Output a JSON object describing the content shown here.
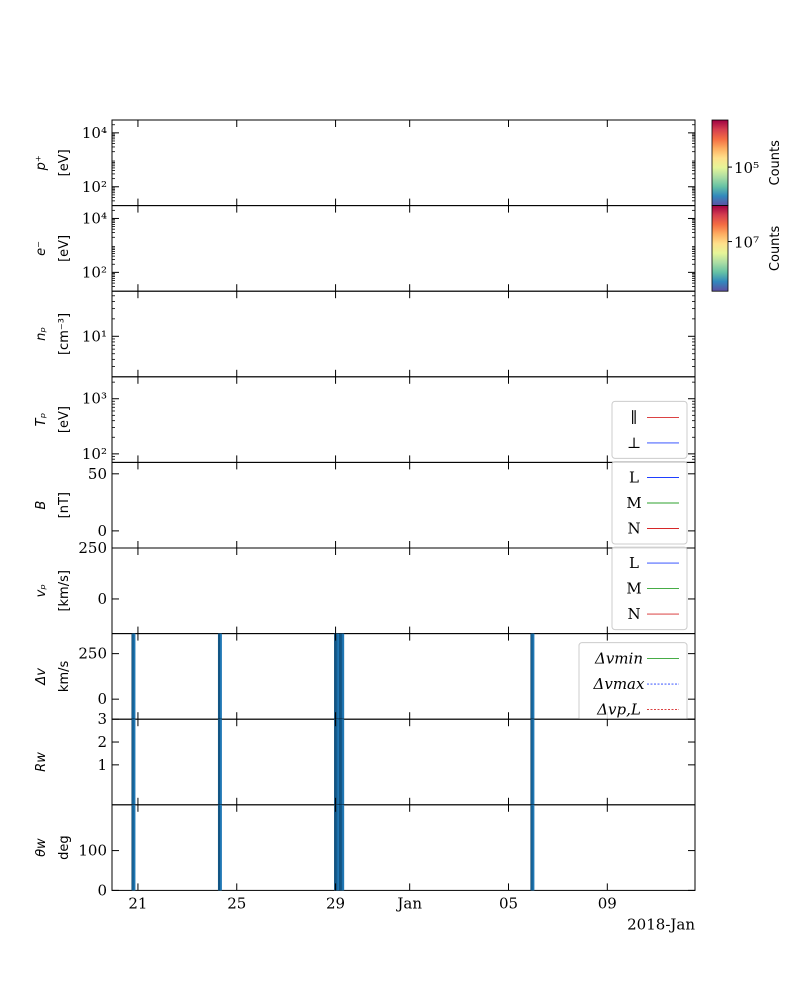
{
  "chart_data": {
    "type": "line",
    "date_axis": {
      "tick_labels": [
        "21",
        "25",
        "29",
        "Jan",
        "05",
        "09"
      ],
      "offset_label": "2018-Jan"
    },
    "panels": [
      {
        "id": "proton-spectrogram",
        "ylabel": [
          "p⁺",
          "[eV]"
        ],
        "yscale": "log",
        "tick_labels": [
          "10⁴",
          "10²"
        ],
        "tick_values": [
          10000,
          100
        ],
        "ylim": [
          20,
          30000
        ],
        "colorbar": {
          "label": "Counts",
          "tick_label": "10⁵",
          "tick_value": 100000
        }
      },
      {
        "id": "electron-spectrogram",
        "ylabel": [
          "e⁻",
          "[eV]"
        ],
        "yscale": "log",
        "tick_labels": [
          "10⁴",
          "10²"
        ],
        "tick_values": [
          10000,
          100
        ],
        "ylim": [
          20,
          30000
        ],
        "colorbar": {
          "label": "Counts",
          "tick_label": "10⁷",
          "tick_value": 10000000
        }
      },
      {
        "id": "proton-density",
        "ylabel": [
          "nₚ",
          "[cm⁻³]"
        ],
        "yscale": "log",
        "tick_labels": [
          "10¹"
        ],
        "tick_values": [
          10
        ],
        "ylim": [
          2,
          60
        ]
      },
      {
        "id": "proton-temperature",
        "ylabel": [
          "Tₚ",
          "[eV]"
        ],
        "yscale": "log",
        "tick_labels": [
          "10³",
          "10²"
        ],
        "tick_values": [
          1000,
          100
        ],
        "ylim": [
          70,
          2500
        ],
        "legend": {
          "loc": "lower-right",
          "entries": [
            {
              "label": "∥",
              "color": "#d62728",
              "dash": "solid"
            },
            {
              "label": "⊥",
              "color": "#1f3fff",
              "dash": "solid"
            }
          ]
        }
      },
      {
        "id": "magnetic-field",
        "ylabel": [
          "B",
          "[nT]"
        ],
        "yscale": "linear",
        "tick_labels": [
          "50",
          "0"
        ],
        "tick_values": [
          50,
          0
        ],
        "ylim": [
          -15,
          60
        ],
        "legend": {
          "loc": "lower-right",
          "entries": [
            {
              "label": "L",
              "color": "#1f3fff",
              "dash": "solid"
            },
            {
              "label": "M",
              "color": "#2ca02c",
              "dash": "solid"
            },
            {
              "label": "N",
              "color": "#d62728",
              "dash": "solid"
            }
          ]
        }
      },
      {
        "id": "proton-velocity",
        "ylabel": [
          "vₚ",
          "[km/s]"
        ],
        "yscale": "linear",
        "tick_labels": [
          "250",
          "0"
        ],
        "tick_values": [
          250,
          0
        ],
        "ylim": [
          -170,
          250
        ],
        "legend": {
          "loc": "lower-right",
          "entries": [
            {
              "label": "L",
              "color": "#1f3fff",
              "dash": "solid"
            },
            {
              "label": "M",
              "color": "#2ca02c",
              "dash": "solid"
            },
            {
              "label": "N",
              "color": "#d62728",
              "dash": "solid"
            }
          ]
        }
      },
      {
        "id": "delta-v",
        "ylabel": [
          "Δv",
          "km/s"
        ],
        "yscale": "linear",
        "tick_labels": [
          "250",
          "0"
        ],
        "tick_values": [
          250,
          0
        ],
        "ylim": [
          -110,
          360
        ],
        "legend": {
          "loc": "upper-right",
          "entries": [
            {
              "label": "Δvmin",
              "color": "#2ca02c",
              "dash": "solid"
            },
            {
              "label": "Δvmax",
              "color": "#1f3fff",
              "dash": "dotted"
            },
            {
              "label": "Δvp,L",
              "color": "#d62728",
              "dash": "dotted"
            }
          ]
        }
      },
      {
        "id": "walen-ratio",
        "ylabel": [
          "Rw",
          ""
        ],
        "yscale": "linear",
        "tick_labels": [
          "3",
          "2",
          "1"
        ],
        "tick_values": [
          3,
          2,
          1
        ],
        "ylim": [
          -0.75,
          3
        ]
      },
      {
        "id": "walen-angle",
        "ylabel": [
          "θw",
          "deg"
        ],
        "yscale": "linear",
        "tick_labels": [
          "100",
          "0"
        ],
        "tick_values": [
          100,
          0
        ],
        "ylim": [
          0,
          215
        ]
      }
    ],
    "event_markers": {
      "panels": [
        "delta-v",
        "walen-ratio",
        "walen-angle"
      ],
      "color": "#1f77b4",
      "days": [
        20.8,
        20.85,
        24.3,
        24.35,
        29.0,
        29.05,
        29.1,
        29.2,
        29.25,
        29.3,
        36.95,
        37.0
      ]
    }
  },
  "colorbar_colors": [
    "#5e4fa2",
    "#3288bd",
    "#66c2a5",
    "#abdda4",
    "#e6f598",
    "#fee08b",
    "#fdae61",
    "#f46d43",
    "#d53e4f",
    "#9e0142"
  ]
}
